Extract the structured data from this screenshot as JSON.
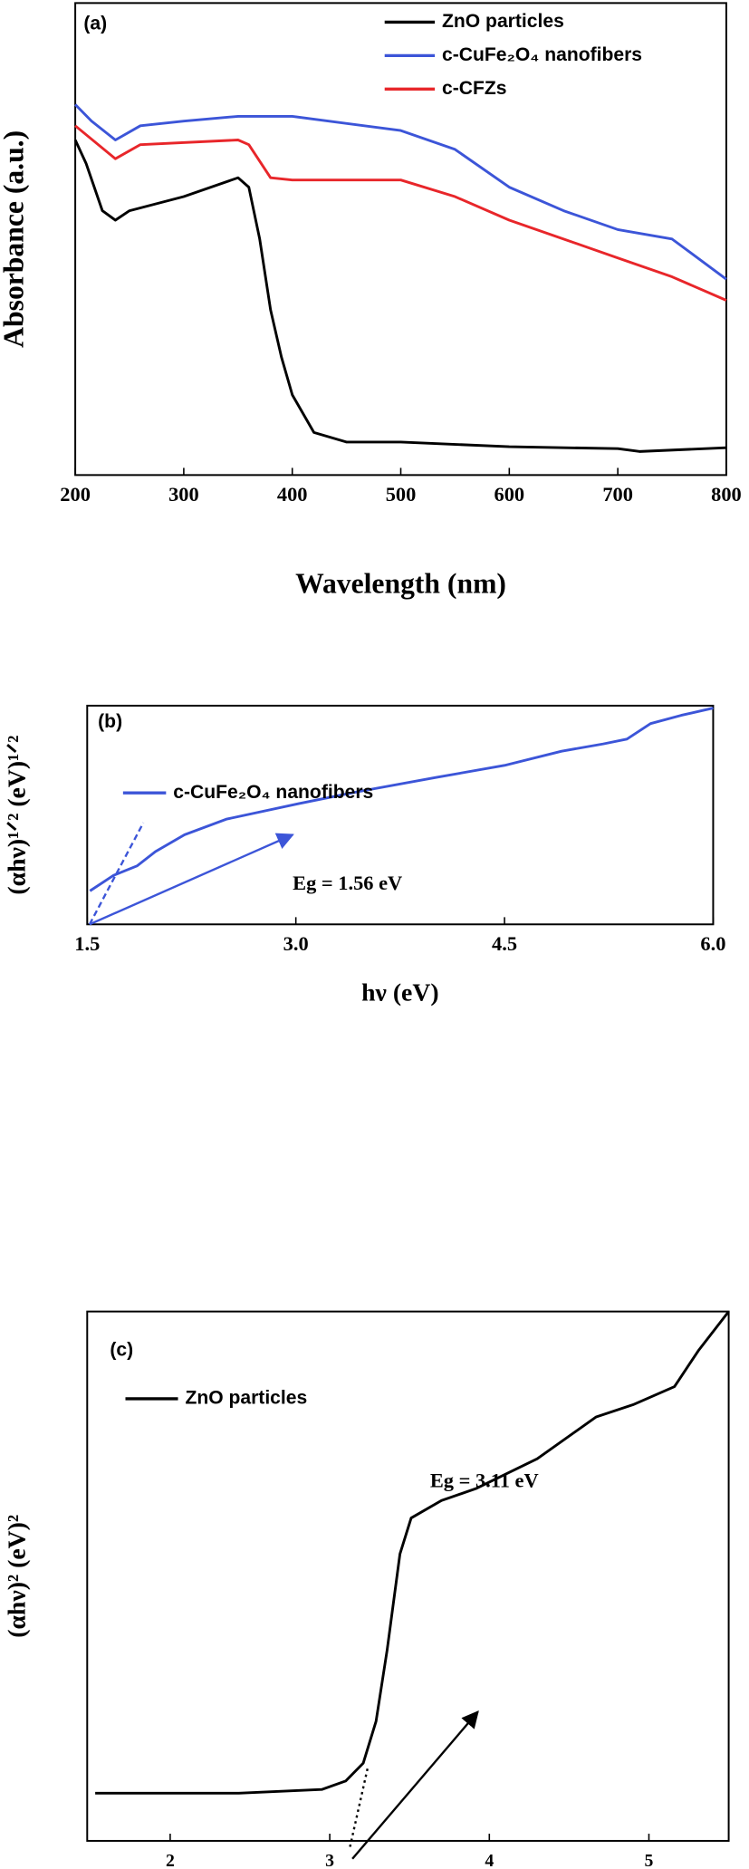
{
  "chart_data": [
    {
      "type": "line",
      "panel_label": "(a)",
      "xlabel": "Wavelength (nm)",
      "ylabel": "Absorbance (a.u.)",
      "xlim": [
        200,
        800
      ],
      "xticks": [
        200,
        300,
        400,
        500,
        600,
        700,
        800
      ],
      "ylim": [
        0,
        100
      ],
      "series": [
        {
          "name": "ZnO particles",
          "color": "#000000",
          "x": [
            200,
            210,
            225,
            237,
            250,
            300,
            350,
            360,
            370,
            380,
            390,
            400,
            420,
            450,
            500,
            600,
            700,
            720,
            800
          ],
          "values": [
            71,
            66,
            56,
            54,
            56,
            59,
            63,
            61,
            50,
            35,
            25,
            17,
            9,
            7,
            7,
            6,
            5.6,
            5,
            5.8
          ]
        },
        {
          "name": "c-CuFe₂O₄ nanofibers",
          "color": "#3c55d8",
          "x": [
            200,
            215,
            237,
            260,
            300,
            350,
            400,
            500,
            550,
            600,
            650,
            700,
            750,
            800
          ],
          "values": [
            78.5,
            75,
            71,
            74,
            75,
            76,
            76,
            73,
            69,
            61,
            56,
            52,
            50,
            41.5
          ]
        },
        {
          "name": "c-CFZs",
          "color": "#e8262a",
          "x": [
            200,
            237,
            260,
            350,
            360,
            380,
            400,
            500,
            550,
            600,
            650,
            700,
            750,
            800
          ],
          "values": [
            74,
            67,
            70,
            71,
            70,
            63,
            62.5,
            62.5,
            59,
            54,
            50,
            46,
            42,
            37
          ]
        }
      ]
    },
    {
      "type": "line",
      "panel_label": "(b)",
      "xlabel": "hν (eV)",
      "ylabel": "(αhν)¹ᐟ² (eV)¹ᐟ²",
      "xlim": [
        1.5,
        6.0
      ],
      "xticks": [
        1.5,
        {
          "value": 3,
          "label": "3.0"
        },
        4.5,
        {
          "value": 6,
          "label": "6.0"
        }
      ],
      "ylim": [
        0,
        100
      ],
      "annotation": "Eg = 1.56 eV",
      "annotation_color": "#3c55d8",
      "series": [
        {
          "name": "c-CuFe₂O₄ nanofibers",
          "color": "#3c55d8",
          "x": [
            1.52,
            1.69,
            1.86,
            1.99,
            2.2,
            2.5,
            3.02,
            3.45,
            4.01,
            4.5,
            4.91,
            5.21,
            5.38,
            5.55,
            5.77,
            6.0
          ],
          "values": [
            15.3,
            22.4,
            26.8,
            33.3,
            41,
            48.1,
            55.2,
            60.7,
            67.2,
            72.7,
            79.2,
            82.5,
            84.7,
            91.8,
            95.6,
            98.9
          ]
        }
      ]
    },
    {
      "type": "line",
      "panel_label": "(c)",
      "xlabel": "hν (eV)",
      "ylabel": "(αhν)² (eV)²",
      "xlim": [
        1.48,
        5.5
      ],
      "xticks": [
        2,
        3,
        4,
        5
      ],
      "ylim": [
        0,
        100
      ],
      "annotation": "Eg = 3.11 eV",
      "annotation_color": "#000000",
      "series": [
        {
          "name": "ZnO particles",
          "color": "#000000",
          "x": [
            1.53,
            2.43,
            2.95,
            3.1,
            3.21,
            3.29,
            3.36,
            3.44,
            3.51,
            3.7,
            3.92,
            4.3,
            4.67,
            4.9,
            5.16,
            5.31,
            5.5
          ],
          "values": [
            9,
            9,
            9.7,
            11.3,
            14.7,
            22.6,
            36.1,
            54.2,
            61,
            64.3,
            66.6,
            72.2,
            80.1,
            82.4,
            85.8,
            92.6,
            100
          ]
        }
      ]
    }
  ]
}
